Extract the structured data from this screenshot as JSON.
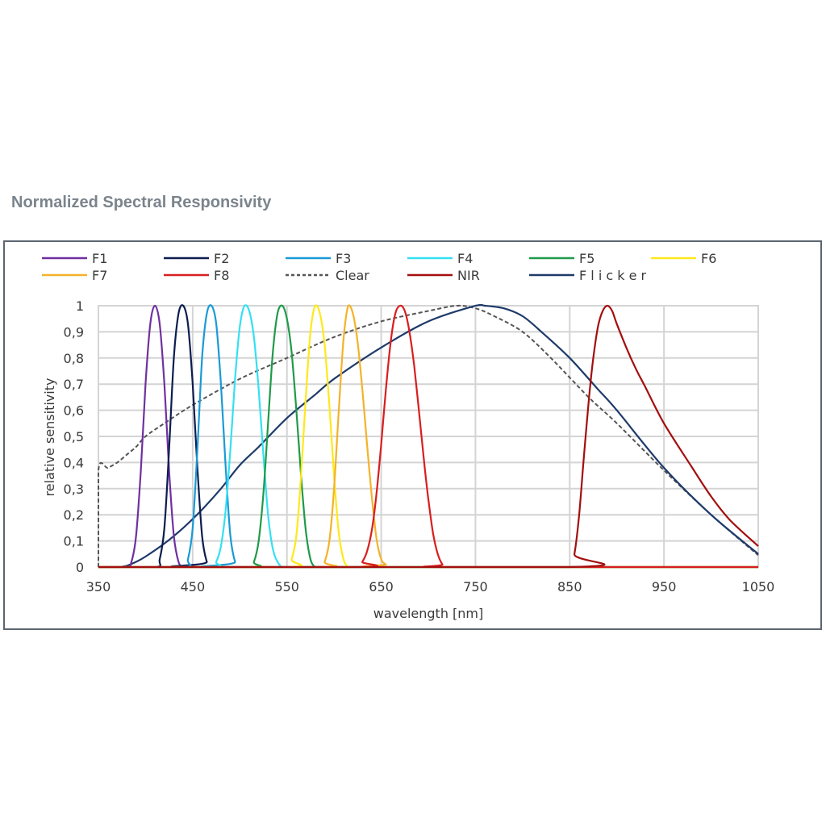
{
  "page": {
    "title": "Normalized Spectral Responsivity"
  },
  "chart_data": {
    "type": "line",
    "title": "",
    "xlabel": "wavelength [nm]",
    "ylabel": "relative sensitivity",
    "xlim": [
      350,
      1050
    ],
    "ylim": [
      0,
      1
    ],
    "x_ticks": [
      350,
      450,
      550,
      650,
      750,
      850,
      950,
      1050
    ],
    "x_tick_labels": [
      "350",
      "450",
      "550",
      "650",
      "750",
      "850",
      "950",
      "1050"
    ],
    "y_ticks": [
      0,
      0.1,
      0.2,
      0.3,
      0.4,
      0.5,
      0.6,
      0.7,
      0.8,
      0.9,
      1
    ],
    "y_tick_labels": [
      "0",
      "0,1",
      "0,2",
      "0,3",
      "0,4",
      "0,5",
      "0,6",
      "0,7",
      "0,8",
      "0,9",
      "1"
    ],
    "grid": true,
    "legend_position": "top",
    "series": [
      {
        "name": "F1",
        "color": "#7030a0",
        "style": "solid",
        "x": [
          350,
          380,
          385,
          390,
          395,
          400,
          405,
          410,
          415,
          420,
          425,
          430,
          435,
          440,
          445,
          1050
        ],
        "y": [
          0,
          0,
          0.02,
          0.12,
          0.37,
          0.7,
          0.93,
          1.0,
          0.93,
          0.7,
          0.37,
          0.12,
          0.02,
          0,
          0,
          0
        ]
      },
      {
        "name": "F2",
        "color": "#0c1d4f",
        "style": "solid",
        "x": [
          350,
          410,
          415,
          420,
          425,
          430,
          435,
          440,
          445,
          450,
          455,
          460,
          465,
          470,
          1050
        ],
        "y": [
          0,
          0,
          0.03,
          0.15,
          0.45,
          0.8,
          0.97,
          1.0,
          0.93,
          0.7,
          0.38,
          0.12,
          0.02,
          0,
          0
        ]
      },
      {
        "name": "F3",
        "color": "#1a9ad6",
        "style": "solid",
        "x": [
          350,
          440,
          445,
          450,
          455,
          460,
          465,
          470,
          475,
          480,
          485,
          490,
          495,
          500,
          1050
        ],
        "y": [
          0,
          0,
          0.03,
          0.15,
          0.45,
          0.8,
          0.97,
          1.0,
          0.93,
          0.7,
          0.38,
          0.12,
          0.02,
          0,
          0
        ]
      },
      {
        "name": "F4",
        "color": "#33e0f2",
        "style": "solid",
        "x": [
          350,
          470,
          475,
          480,
          485,
          490,
          495,
          500,
          505,
          510,
          515,
          520,
          525,
          530,
          535,
          540,
          545,
          550,
          1050
        ],
        "y": [
          0,
          0,
          0.02,
          0.08,
          0.22,
          0.45,
          0.72,
          0.92,
          1.0,
          0.98,
          0.88,
          0.68,
          0.43,
          0.2,
          0.07,
          0.02,
          0,
          0,
          0
        ]
      },
      {
        "name": "F5",
        "color": "#1f9a4a",
        "style": "solid",
        "x": [
          350,
          510,
          515,
          520,
          525,
          530,
          535,
          540,
          545,
          550,
          555,
          560,
          565,
          570,
          575,
          580,
          585,
          1050
        ],
        "y": [
          0,
          0,
          0.02,
          0.1,
          0.28,
          0.55,
          0.82,
          0.97,
          1.0,
          0.95,
          0.82,
          0.6,
          0.35,
          0.14,
          0.03,
          0,
          0,
          0
        ]
      },
      {
        "name": "F6",
        "color": "#ffe81a",
        "style": "solid",
        "x": [
          350,
          550,
          555,
          560,
          565,
          570,
          575,
          580,
          585,
          590,
          595,
          600,
          605,
          610,
          615,
          620,
          1050
        ],
        "y": [
          0,
          0,
          0.03,
          0.12,
          0.35,
          0.65,
          0.9,
          1.0,
          0.97,
          0.85,
          0.62,
          0.35,
          0.13,
          0.03,
          0,
          0,
          0
        ]
      },
      {
        "name": "F7",
        "color": "#f4b22a",
        "style": "solid",
        "x": [
          350,
          585,
          590,
          595,
          600,
          605,
          610,
          615,
          620,
          625,
          630,
          635,
          640,
          645,
          650,
          655,
          660,
          1050
        ],
        "y": [
          0,
          0,
          0.02,
          0.1,
          0.3,
          0.6,
          0.87,
          1.0,
          0.97,
          0.86,
          0.68,
          0.47,
          0.27,
          0.11,
          0.03,
          0.01,
          0,
          0
        ]
      },
      {
        "name": "F8",
        "color": "#d81e1e",
        "style": "solid",
        "x": [
          350,
          625,
          630,
          635,
          640,
          645,
          650,
          655,
          660,
          665,
          670,
          675,
          680,
          685,
          690,
          695,
          700,
          705,
          710,
          715,
          720,
          1050
        ],
        "y": [
          0,
          0,
          0.02,
          0.06,
          0.14,
          0.28,
          0.47,
          0.68,
          0.86,
          0.97,
          1.0,
          0.98,
          0.9,
          0.77,
          0.6,
          0.42,
          0.26,
          0.13,
          0.05,
          0.01,
          0,
          0
        ]
      },
      {
        "name": "Clear",
        "color": "#555555",
        "style": "dashed",
        "x": [
          350,
          350,
          360,
          370,
          380,
          390,
          400,
          420,
          450,
          500,
          550,
          600,
          650,
          700,
          730,
          750,
          770,
          800,
          830,
          870,
          900,
          950,
          1000,
          1050
        ],
        "y": [
          0,
          0.37,
          0.38,
          0.4,
          0.43,
          0.46,
          0.5,
          0.55,
          0.62,
          0.72,
          0.8,
          0.88,
          0.94,
          0.98,
          1.0,
          0.99,
          0.96,
          0.9,
          0.8,
          0.65,
          0.55,
          0.37,
          0.2,
          0.045
        ]
      },
      {
        "name": "NIR",
        "color": "#a30f0f",
        "style": "solid",
        "x": [
          350,
          850,
          855,
          860,
          865,
          870,
          875,
          880,
          885,
          890,
          895,
          900,
          910,
          920,
          930,
          950,
          980,
          1000,
          1020,
          1050
        ],
        "y": [
          0,
          0,
          0.05,
          0.2,
          0.42,
          0.63,
          0.8,
          0.92,
          0.98,
          1.0,
          0.98,
          0.93,
          0.84,
          0.76,
          0.69,
          0.55,
          0.38,
          0.27,
          0.18,
          0.08
        ]
      },
      {
        "name": "F l i c k e r",
        "color": "#1e3a6a",
        "style": "solid",
        "x": [
          350,
          370,
          380,
          390,
          400,
          420,
          440,
          460,
          480,
          500,
          520,
          550,
          580,
          600,
          650,
          700,
          750,
          760,
          780,
          800,
          820,
          850,
          880,
          900,
          950,
          1000,
          1050
        ],
        "y": [
          0,
          0,
          0.005,
          0.02,
          0.04,
          0.09,
          0.15,
          0.22,
          0.3,
          0.39,
          0.46,
          0.57,
          0.66,
          0.72,
          0.84,
          0.94,
          1.0,
          1.0,
          0.99,
          0.96,
          0.9,
          0.8,
          0.68,
          0.6,
          0.38,
          0.2,
          0.05
        ]
      }
    ]
  }
}
